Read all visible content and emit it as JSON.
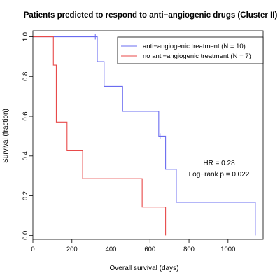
{
  "chart_data": {
    "type": "line",
    "title": "Patients predicted to respond to anti−angiogenic drugs (Cluster II)",
    "xlabel": "Overall survival (days)",
    "ylabel": "Survival (fraction)",
    "xlim": [
      0,
      1180
    ],
    "ylim": [
      -0.02,
      1.03
    ],
    "x_ticks": [
      0,
      200,
      400,
      600,
      800,
      1000
    ],
    "x_tick_labels": [
      "0",
      "200",
      "400",
      "600",
      "800",
      "1000"
    ],
    "y_ticks": [
      0.0,
      0.2,
      0.4,
      0.6,
      0.8,
      1.0
    ],
    "y_tick_labels": [
      "0.0",
      "0.2",
      "0.4",
      "0.6",
      "0.8",
      "1.0"
    ],
    "grid": false,
    "legend_position": "top-right",
    "series": [
      {
        "name": "anti−angiogenic treatment (N = 10)",
        "color": "#6a6cf0",
        "x": [
          0,
          330,
          365,
          460,
          645,
          680,
          735,
          1140
        ],
        "y": [
          1.0,
          0.875,
          0.75,
          0.625,
          0.5,
          0.333,
          0.167,
          0.0
        ],
        "end_x": 1140,
        "censored": [
          [
            320,
            1.0
          ],
          [
            652,
            0.5
          ]
        ]
      },
      {
        "name": "no anti−angiogenic treatment (N = 7)",
        "color": "#e84a4a",
        "x": [
          0,
          105,
          120,
          175,
          255,
          560,
          680
        ],
        "y": [
          1.0,
          0.857,
          0.571,
          0.429,
          0.286,
          0.143,
          0.0
        ],
        "end_x": 680,
        "censored": []
      }
    ],
    "annotations": [
      "HR = 0.28",
      "Log−rank p = 0.022"
    ]
  }
}
